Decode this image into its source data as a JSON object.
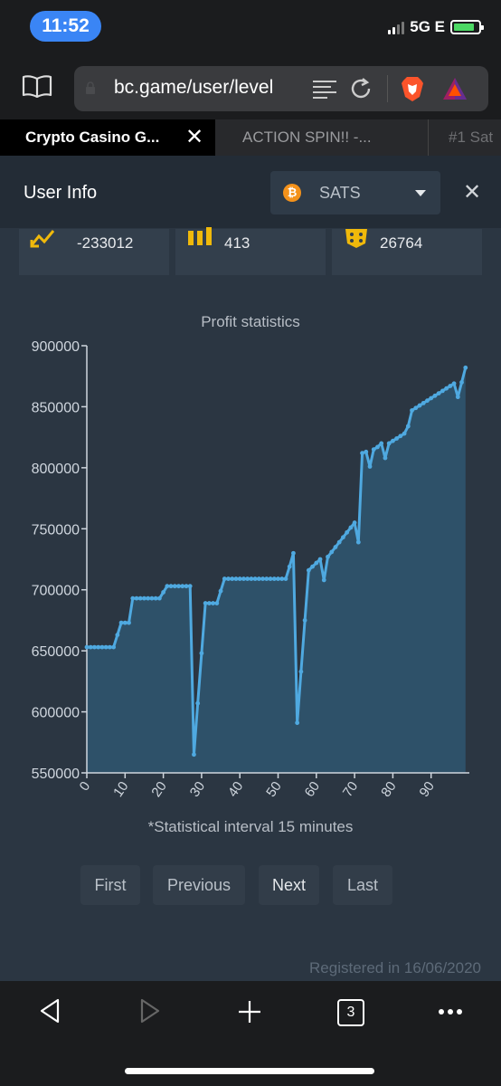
{
  "status_bar": {
    "time": "11:52",
    "network": "5G E"
  },
  "browser": {
    "url": "bc.game/user/level",
    "tabs": [
      {
        "label": "Crypto Casino G...",
        "active": true
      },
      {
        "label": "ACTION SPIN!! -...",
        "active": false
      },
      {
        "label": "#1 Sat",
        "active": false
      }
    ]
  },
  "modal": {
    "title": "User Info",
    "currency": "SATS",
    "stats": [
      {
        "icon": "trend-icon",
        "value": "-233012"
      },
      {
        "icon": "bar-chart-icon",
        "value": "413"
      },
      {
        "icon": "dice-icon",
        "value": "26764"
      }
    ],
    "chart_note": "*Statistical interval 15 minutes",
    "pager": {
      "first": "First",
      "previous": "Previous",
      "next": "Next",
      "last": "Last"
    },
    "registered": "Registered in 16/06/2020"
  },
  "bottom_bar": {
    "tab_count": "3"
  },
  "colors": {
    "accent": "#3a85f5",
    "line": "#4fa9e0",
    "modal_bg": "#2b3642",
    "coin": "#f4921b"
  },
  "chart_data": {
    "type": "area",
    "title": "Profit statistics",
    "xlabel": "",
    "ylabel": "",
    "x_ticks": [
      0,
      10,
      20,
      30,
      40,
      50,
      60,
      70,
      80,
      90
    ],
    "y_ticks": [
      550000,
      600000,
      650000,
      700000,
      750000,
      800000,
      850000,
      900000
    ],
    "ylim": [
      550000,
      900000
    ],
    "xlim": [
      0,
      100
    ],
    "grid": false,
    "series": [
      {
        "values": [
          653000,
          653000,
          653000,
          653000,
          653000,
          653000,
          653000,
          653000,
          663000,
          673000,
          673000,
          673000,
          693000,
          693000,
          693000,
          693000,
          693000,
          693000,
          693000,
          693000,
          698000,
          703000,
          703000,
          703000,
          703000,
          703000,
          703000,
          703000,
          565000,
          607000,
          648000,
          689000,
          689000,
          689000,
          689000,
          699000,
          709000,
          709000,
          709000,
          709000,
          709000,
          709000,
          709000,
          709000,
          709000,
          709000,
          709000,
          709000,
          709000,
          709000,
          709000,
          709000,
          709000,
          719000,
          730000,
          591000,
          633000,
          675000,
          716000,
          719000,
          722000,
          725000,
          708000,
          727000,
          731000,
          735000,
          739000,
          743000,
          747000,
          751000,
          755000,
          739000,
          812000,
          813000,
          801000,
          815000,
          817000,
          820000,
          808000,
          820000,
          822000,
          824000,
          826000,
          828000,
          834000,
          847000,
          849000,
          851000,
          853000,
          855000,
          857000,
          859000,
          861000,
          863000,
          865000,
          867000,
          869000,
          858000,
          870000,
          882000
        ]
      }
    ]
  }
}
